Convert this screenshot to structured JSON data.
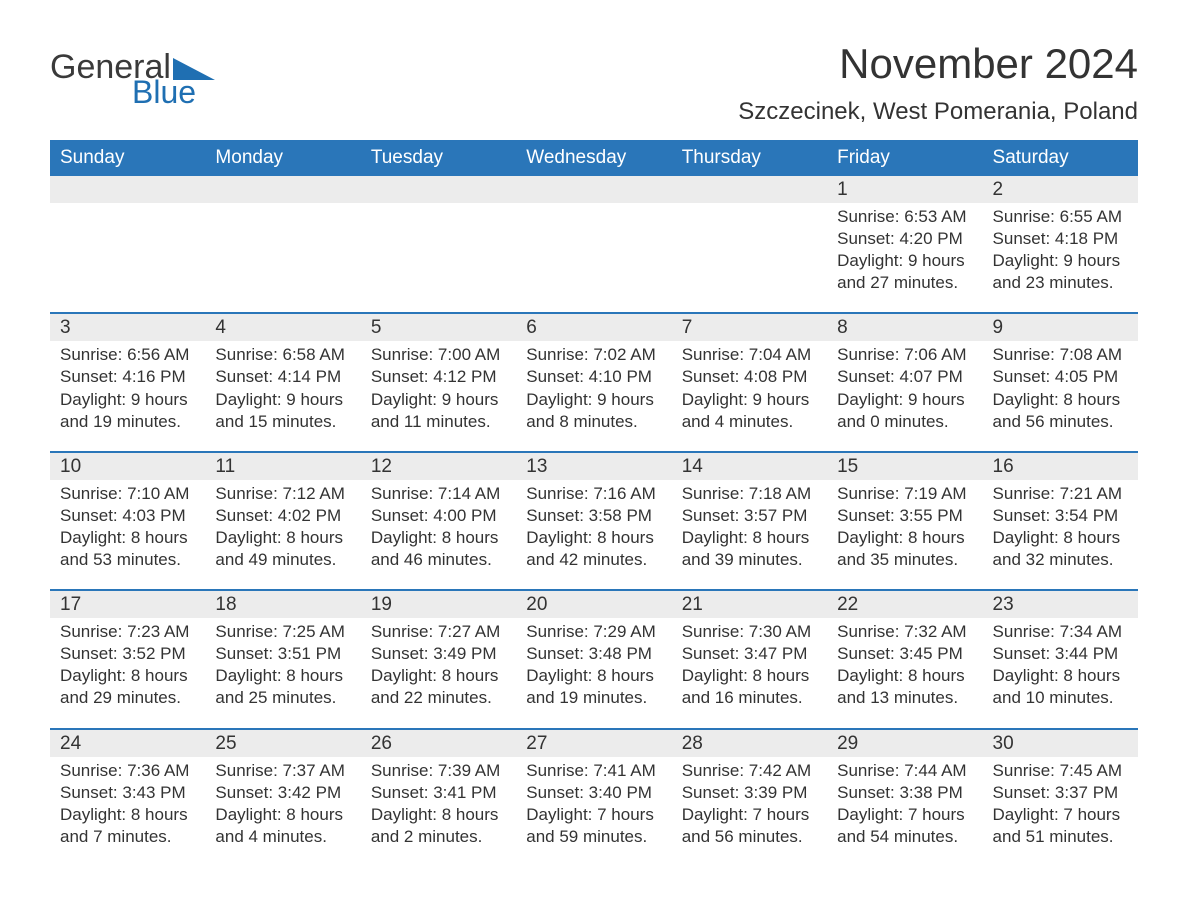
{
  "brand": {
    "word1": "General",
    "word2": "Blue"
  },
  "title": "November 2024",
  "location": "Szczecinek, West Pomerania, Poland",
  "colors": {
    "header_bg": "#2a76b9",
    "header_text": "#ffffff",
    "daynum_bg": "#ececec",
    "border": "#2a76b9",
    "text": "#333333",
    "logo_accent": "#1f6fb2",
    "page_bg": "#ffffff"
  },
  "typography": {
    "title_fontsize": 42,
    "location_fontsize": 24,
    "weekday_fontsize": 19,
    "cell_fontsize": 17
  },
  "weekdays": [
    "Sunday",
    "Monday",
    "Tuesday",
    "Wednesday",
    "Thursday",
    "Friday",
    "Saturday"
  ],
  "weeks": [
    [
      null,
      null,
      null,
      null,
      null,
      {
        "n": "1",
        "sr": "Sunrise: 6:53 AM",
        "ss": "Sunset: 4:20 PM",
        "d1": "Daylight: 9 hours",
        "d2": "and 27 minutes."
      },
      {
        "n": "2",
        "sr": "Sunrise: 6:55 AM",
        "ss": "Sunset: 4:18 PM",
        "d1": "Daylight: 9 hours",
        "d2": "and 23 minutes."
      }
    ],
    [
      {
        "n": "3",
        "sr": "Sunrise: 6:56 AM",
        "ss": "Sunset: 4:16 PM",
        "d1": "Daylight: 9 hours",
        "d2": "and 19 minutes."
      },
      {
        "n": "4",
        "sr": "Sunrise: 6:58 AM",
        "ss": "Sunset: 4:14 PM",
        "d1": "Daylight: 9 hours",
        "d2": "and 15 minutes."
      },
      {
        "n": "5",
        "sr": "Sunrise: 7:00 AM",
        "ss": "Sunset: 4:12 PM",
        "d1": "Daylight: 9 hours",
        "d2": "and 11 minutes."
      },
      {
        "n": "6",
        "sr": "Sunrise: 7:02 AM",
        "ss": "Sunset: 4:10 PM",
        "d1": "Daylight: 9 hours",
        "d2": "and 8 minutes."
      },
      {
        "n": "7",
        "sr": "Sunrise: 7:04 AM",
        "ss": "Sunset: 4:08 PM",
        "d1": "Daylight: 9 hours",
        "d2": "and 4 minutes."
      },
      {
        "n": "8",
        "sr": "Sunrise: 7:06 AM",
        "ss": "Sunset: 4:07 PM",
        "d1": "Daylight: 9 hours",
        "d2": "and 0 minutes."
      },
      {
        "n": "9",
        "sr": "Sunrise: 7:08 AM",
        "ss": "Sunset: 4:05 PM",
        "d1": "Daylight: 8 hours",
        "d2": "and 56 minutes."
      }
    ],
    [
      {
        "n": "10",
        "sr": "Sunrise: 7:10 AM",
        "ss": "Sunset: 4:03 PM",
        "d1": "Daylight: 8 hours",
        "d2": "and 53 minutes."
      },
      {
        "n": "11",
        "sr": "Sunrise: 7:12 AM",
        "ss": "Sunset: 4:02 PM",
        "d1": "Daylight: 8 hours",
        "d2": "and 49 minutes."
      },
      {
        "n": "12",
        "sr": "Sunrise: 7:14 AM",
        "ss": "Sunset: 4:00 PM",
        "d1": "Daylight: 8 hours",
        "d2": "and 46 minutes."
      },
      {
        "n": "13",
        "sr": "Sunrise: 7:16 AM",
        "ss": "Sunset: 3:58 PM",
        "d1": "Daylight: 8 hours",
        "d2": "and 42 minutes."
      },
      {
        "n": "14",
        "sr": "Sunrise: 7:18 AM",
        "ss": "Sunset: 3:57 PM",
        "d1": "Daylight: 8 hours",
        "d2": "and 39 minutes."
      },
      {
        "n": "15",
        "sr": "Sunrise: 7:19 AM",
        "ss": "Sunset: 3:55 PM",
        "d1": "Daylight: 8 hours",
        "d2": "and 35 minutes."
      },
      {
        "n": "16",
        "sr": "Sunrise: 7:21 AM",
        "ss": "Sunset: 3:54 PM",
        "d1": "Daylight: 8 hours",
        "d2": "and 32 minutes."
      }
    ],
    [
      {
        "n": "17",
        "sr": "Sunrise: 7:23 AM",
        "ss": "Sunset: 3:52 PM",
        "d1": "Daylight: 8 hours",
        "d2": "and 29 minutes."
      },
      {
        "n": "18",
        "sr": "Sunrise: 7:25 AM",
        "ss": "Sunset: 3:51 PM",
        "d1": "Daylight: 8 hours",
        "d2": "and 25 minutes."
      },
      {
        "n": "19",
        "sr": "Sunrise: 7:27 AM",
        "ss": "Sunset: 3:49 PM",
        "d1": "Daylight: 8 hours",
        "d2": "and 22 minutes."
      },
      {
        "n": "20",
        "sr": "Sunrise: 7:29 AM",
        "ss": "Sunset: 3:48 PM",
        "d1": "Daylight: 8 hours",
        "d2": "and 19 minutes."
      },
      {
        "n": "21",
        "sr": "Sunrise: 7:30 AM",
        "ss": "Sunset: 3:47 PM",
        "d1": "Daylight: 8 hours",
        "d2": "and 16 minutes."
      },
      {
        "n": "22",
        "sr": "Sunrise: 7:32 AM",
        "ss": "Sunset: 3:45 PM",
        "d1": "Daylight: 8 hours",
        "d2": "and 13 minutes."
      },
      {
        "n": "23",
        "sr": "Sunrise: 7:34 AM",
        "ss": "Sunset: 3:44 PM",
        "d1": "Daylight: 8 hours",
        "d2": "and 10 minutes."
      }
    ],
    [
      {
        "n": "24",
        "sr": "Sunrise: 7:36 AM",
        "ss": "Sunset: 3:43 PM",
        "d1": "Daylight: 8 hours",
        "d2": "and 7 minutes."
      },
      {
        "n": "25",
        "sr": "Sunrise: 7:37 AM",
        "ss": "Sunset: 3:42 PM",
        "d1": "Daylight: 8 hours",
        "d2": "and 4 minutes."
      },
      {
        "n": "26",
        "sr": "Sunrise: 7:39 AM",
        "ss": "Sunset: 3:41 PM",
        "d1": "Daylight: 8 hours",
        "d2": "and 2 minutes."
      },
      {
        "n": "27",
        "sr": "Sunrise: 7:41 AM",
        "ss": "Sunset: 3:40 PM",
        "d1": "Daylight: 7 hours",
        "d2": "and 59 minutes."
      },
      {
        "n": "28",
        "sr": "Sunrise: 7:42 AM",
        "ss": "Sunset: 3:39 PM",
        "d1": "Daylight: 7 hours",
        "d2": "and 56 minutes."
      },
      {
        "n": "29",
        "sr": "Sunrise: 7:44 AM",
        "ss": "Sunset: 3:38 PM",
        "d1": "Daylight: 7 hours",
        "d2": "and 54 minutes."
      },
      {
        "n": "30",
        "sr": "Sunrise: 7:45 AM",
        "ss": "Sunset: 3:37 PM",
        "d1": "Daylight: 7 hours",
        "d2": "and 51 minutes."
      }
    ]
  ]
}
